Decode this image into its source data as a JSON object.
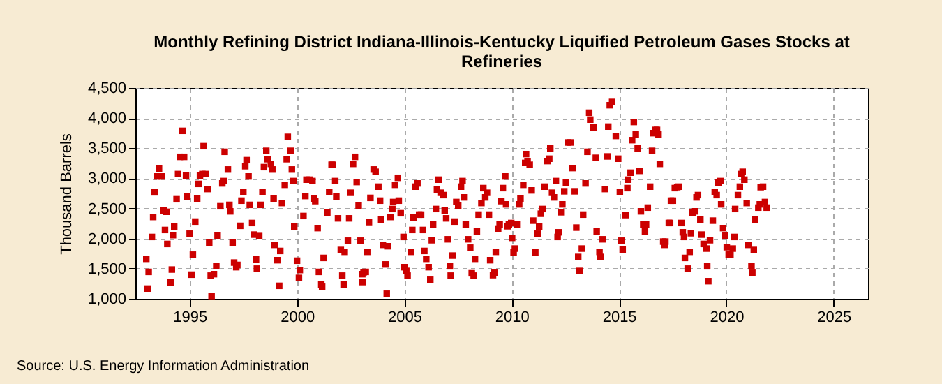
{
  "chart_data": {
    "type": "scatter",
    "title": "Monthly Refining District Indiana-Illinois-Kentucky Liquified Petroleum Gases Stocks at Refineries",
    "ylabel": "Thousand Barrels",
    "annotations": [
      "Source: U.S. Energy Information Administration"
    ],
    "x": [
      1992.98,
      1993.04,
      1993.09,
      1993.24,
      1993.3,
      1993.37,
      1993.5,
      1993.57,
      1993.7,
      1993.78,
      1993.85,
      1993.91,
      1993.96,
      1994.11,
      1994.17,
      1994.22,
      1994.28,
      1994.39,
      1994.46,
      1994.54,
      1994.67,
      1994.74,
      1994.83,
      1994.89,
      1995.0,
      1995.09,
      1995.15,
      1995.26,
      1995.35,
      1995.41,
      1995.48,
      1995.59,
      1995.65,
      1995.74,
      1995.83,
      1995.91,
      1995.98,
      1996.02,
      1996.13,
      1996.24,
      1996.3,
      1996.43,
      1996.52,
      1996.59,
      1996.63,
      1996.78,
      1996.85,
      1996.89,
      1997.0,
      1997.07,
      1997.17,
      1997.22,
      1997.35,
      1997.41,
      1997.5,
      1997.59,
      1997.65,
      1997.74,
      1997.8,
      1997.91,
      1998.0,
      1998.09,
      1998.13,
      1998.24,
      1998.3,
      1998.39,
      1998.46,
      1998.57,
      1998.63,
      1998.78,
      1998.85,
      1998.91,
      1998.96,
      1999.09,
      1999.22,
      1999.17,
      1999.3,
      1999.43,
      1999.52,
      1999.57,
      1999.7,
      1999.76,
      1999.83,
      1999.87,
      2000.0,
      2000.09,
      2000.13,
      2000.3,
      2000.39,
      2000.44,
      2000.59,
      2000.72,
      2000.78,
      2000.85,
      2000.96,
      2001.02,
      2001.13,
      2001.17,
      2001.24,
      2001.41,
      2001.5,
      2001.61,
      2001.67,
      2001.78,
      2001.83,
      2001.91,
      2002.04,
      2002.22,
      2002.11,
      2002.17,
      2002.37,
      2002.43,
      2002.5,
      2002.61,
      2002.7,
      2002.78,
      2002.87,
      2002.96,
      2003.04,
      2003.05,
      2003.1,
      2003.2,
      2003.27,
      2003.35,
      2003.42,
      2003.57,
      2003.66,
      2003.79,
      2003.87,
      2003.92,
      2004.0,
      2004.13,
      2004.18,
      2004.24,
      2004.35,
      2004.44,
      2004.48,
      2004.57,
      2004.7,
      2004.74,
      2004.83,
      2004.96,
      2005.0,
      2005.09,
      2005.15,
      2005.3,
      2005.37,
      2005.43,
      2005.52,
      2005.61,
      2005.69,
      2005.78,
      2005.87,
      2005.93,
      2006.02,
      2006.13,
      2006.21,
      2006.28,
      2006.34,
      2006.47,
      2006.52,
      2006.6,
      2006.69,
      2006.82,
      2006.88,
      2006.95,
      2007.03,
      2007.12,
      2007.16,
      2007.25,
      2007.34,
      2007.42,
      2007.51,
      2007.64,
      2007.71,
      2007.77,
      2007.86,
      2007.97,
      2008.07,
      2008.14,
      2008.23,
      2008.29,
      2008.38,
      2008.46,
      2008.59,
      2008.68,
      2008.77,
      2008.85,
      2008.94,
      2009.0,
      2009.13,
      2009.2,
      2009.26,
      2009.37,
      2009.44,
      2009.52,
      2009.59,
      2009.7,
      2009.74,
      2009.81,
      2009.87,
      2009.98,
      2010.02,
      2010.09,
      2010.15,
      2010.24,
      2010.35,
      2010.41,
      2010.54,
      2010.63,
      2010.67,
      2010.74,
      2010.84,
      2010.93,
      2011.0,
      2011.1,
      2011.21,
      2011.28,
      2011.36,
      2011.43,
      2011.54,
      2011.67,
      2011.75,
      2011.8,
      2011.88,
      2011.97,
      2012.06,
      2012.14,
      2012.19,
      2012.29,
      2012.36,
      2012.45,
      2012.53,
      2012.62,
      2012.73,
      2012.84,
      2012.94,
      2013.01,
      2013.1,
      2013.16,
      2013.27,
      2013.33,
      2013.44,
      2013.53,
      2013.61,
      2013.66,
      2013.81,
      2013.92,
      2013.96,
      2014.09,
      2014.13,
      2014.24,
      2014.35,
      2014.46,
      2014.5,
      2014.57,
      2014.68,
      2014.85,
      2014.96,
      2015.04,
      2015.11,
      2015.17,
      2015.3,
      2015.39,
      2015.43,
      2015.54,
      2015.61,
      2015.69,
      2015.78,
      2015.87,
      2015.95,
      2016.02,
      2016.13,
      2016.21,
      2016.26,
      2016.34,
      2016.45,
      2016.54,
      2016.58,
      2016.69,
      2016.77,
      2016.84,
      2016.9,
      2017.06,
      2017.12,
      2017.16,
      2017.32,
      2017.38,
      2017.42,
      2017.51,
      2017.6,
      2017.71,
      2017.77,
      2017.9,
      2017.97,
      2018.03,
      2018.07,
      2018.2,
      2018.29,
      2018.35,
      2018.42,
      2018.55,
      2018.61,
      2018.68,
      2018.79,
      2018.85,
      2018.94,
      2019.07,
      2019.11,
      2019.16,
      2019.24,
      2019.37,
      2019.46,
      2019.55,
      2019.63,
      2019.72,
      2019.76,
      2019.85,
      2019.94,
      2020.02,
      2020.11,
      2020.19,
      2020.3,
      2020.37,
      2020.41,
      2020.54,
      2020.63,
      2020.69,
      2020.76,
      2020.84,
      2020.95,
      2021.02,
      2021.17,
      2021.21,
      2021.28,
      2021.34,
      2021.49,
      2021.56,
      2021.6,
      2021.71,
      2021.8,
      2021.88
    ],
    "values": [
      1664,
      1170,
      1447,
      2027,
      2359,
      2768,
      3032,
      3163,
      3032,
      2468,
      2143,
      2445,
      1911,
      1270,
      1486,
      2057,
      2197,
      2653,
      3071,
      3357,
      3789,
      3357,
      3047,
      2700,
      2081,
      1401,
      1733,
      2282,
      2661,
      2908,
      3047,
      3071,
      3534,
      3071,
      2823,
      1934,
      1385,
      1046,
      1409,
      1548,
      2050,
      2537,
      2916,
      2955,
      3441,
      3147,
      2560,
      2452,
      1934,
      1602,
      1525,
      1563,
      2212,
      2630,
      2777,
      3202,
      3302,
      3032,
      2560,
      2259,
      2066,
      1656,
      1501,
      2042,
      2560,
      2777,
      3186,
      3457,
      3318,
      3240,
      3147,
      2661,
      1896,
      1641,
      1795,
      1216,
      2591,
      2893,
      3318,
      3689,
      3457,
      3147,
      2955,
      2197,
      1633,
      1347,
      1478,
      2375,
      2707,
      2978,
      2978,
      2955,
      2661,
      2622,
      2174,
      1447,
      1239,
      1200,
      1679,
      2429,
      2777,
      3225,
      3225,
      2955,
      2700,
      2336,
      1811,
      1780,
      1385,
      1239,
      1965,
      2336,
      2761,
      3240,
      3357,
      2939,
      2545,
      1965,
      1409,
      1278,
      1440,
      1447,
      1780,
      2274,
      2676,
      3147,
      3109,
      2862,
      2630,
      2313,
      1896,
      1571,
      1084,
      1873,
      2359,
      2491,
      2607,
      2893,
      3009,
      2630,
      2421,
      2027,
      1525,
      1463,
      1385,
      1780,
      2143,
      2352,
      2862,
      2916,
      2398,
      2398,
      2143,
      1795,
      1664,
      1525,
      1316,
      1973,
      2236,
      2491,
      2815,
      2978,
      2761,
      2722,
      2468,
      2336,
      1988,
      1540,
      1385,
      1718,
      2282,
      2607,
      2545,
      2862,
      2955,
      2684,
      2236,
      1988,
      1849,
      1424,
      1385,
      1664,
      2120,
      2398,
      2591,
      2838,
      2684,
      2761,
      2398,
      1641,
      1393,
      1432,
      1780,
      2166,
      2236,
      2622,
      2838,
      3032,
      2568,
      2205,
      2236,
      2259,
      2012,
      1772,
      1834,
      2236,
      2568,
      2661,
      2893,
      3256,
      3403,
      3287,
      3225,
      2800,
      2298,
      1772,
      2081,
      2197,
      2413,
      2491,
      2862,
      3287,
      3326,
      3495,
      2761,
      2684,
      2955,
      2027,
      2104,
      2437,
      2568,
      2785,
      2932,
      3596,
      3596,
      3171,
      2785,
      2182,
      1695,
      1463,
      1834,
      2398,
      2916,
      3441,
      4090,
      3975,
      3843,
      3341,
      2120,
      1780,
      1695,
      1988,
      2823,
      3364,
      3859,
      4214,
      4268,
      3704,
      3326,
      2777,
      1965,
      1818,
      2390,
      2838,
      2978,
      3094,
      3634,
      3936,
      3727,
      3495,
      3124,
      2452,
      2236,
      2120,
      2236,
      2514,
      2862,
      3457,
      3750,
      3804,
      3804,
      3727,
      3240,
      1950,
      1896,
      1950,
      2259,
      2259,
      2630,
      2630,
      2838,
      2854,
      2862,
      2259,
      2104,
      2027,
      1679,
      1501,
      1780,
      2089,
      2429,
      2452,
      2684,
      2722,
      2313,
      2066,
      1911,
      1834,
      1540,
      1293,
      1973,
      2298,
      2777,
      2722,
      2932,
      2955,
      2568,
      2174,
      2050,
      1857,
      1733,
      1733,
      1834,
      2027,
      2491,
      2722,
      2862,
      3071,
      3109,
      2978,
      2591,
      1896,
      1540,
      1432,
      1811,
      2313,
      2514,
      2568,
      2854,
      2862,
      2607,
      2514
    ],
    "color": "#cc0000",
    "marker": "square",
    "xlim": [
      1992.47,
      2026.6
    ],
    "xticks": [
      1995,
      2000,
      2005,
      2010,
      2015,
      2020,
      2025
    ],
    "ylim": [
      1000,
      4500
    ],
    "yticks": [
      {
        "value": 1000,
        "label": "1,000"
      },
      {
        "value": 1500,
        "label": "1,500"
      },
      {
        "value": 2000,
        "label": "2,000"
      },
      {
        "value": 2500,
        "label": "2,500"
      },
      {
        "value": 3000,
        "label": "3,000"
      },
      {
        "value": 3500,
        "label": "3,500"
      },
      {
        "value": 4000,
        "label": "4,000"
      },
      {
        "value": 4500,
        "label": "4,500"
      }
    ],
    "grid": true
  }
}
